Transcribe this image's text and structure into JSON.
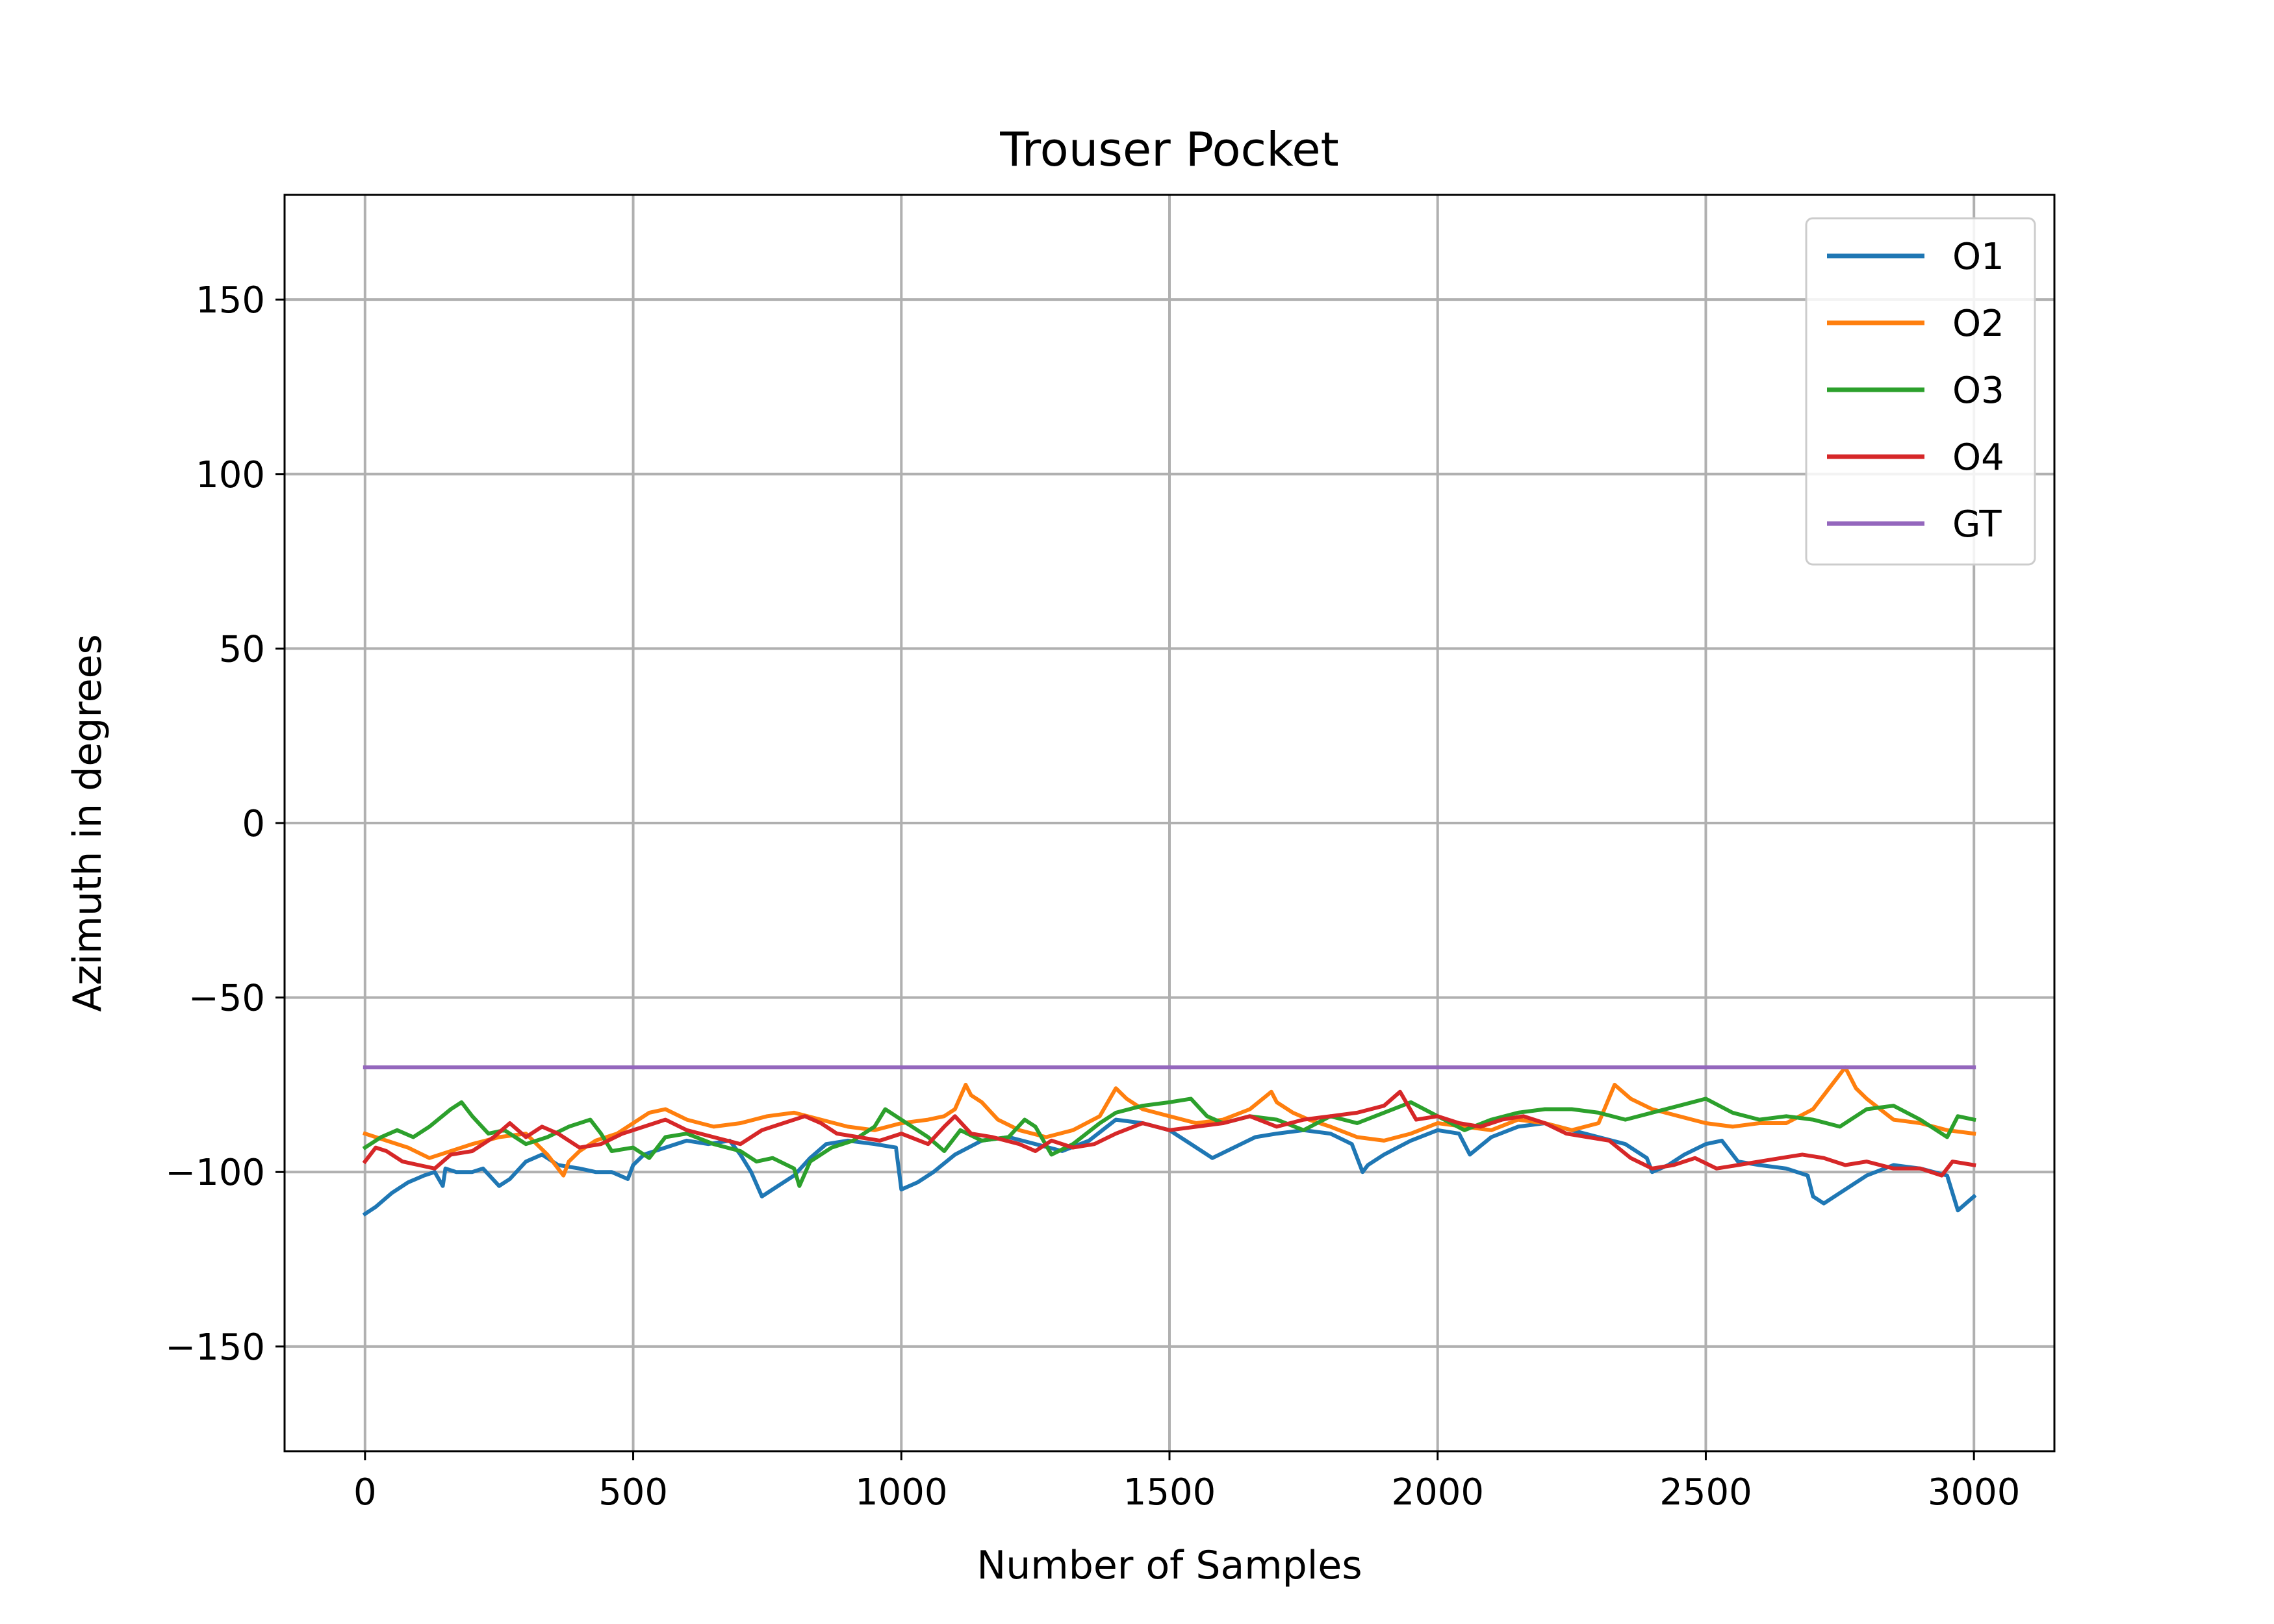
{
  "chart_data": {
    "type": "line",
    "title": "Trouser Pocket",
    "xlabel": "Number of Samples",
    "ylabel": "Azimuth in degrees",
    "xlim": [
      -150,
      3150
    ],
    "ylim": [
      -180,
      180
    ],
    "xticks": [
      0,
      500,
      1000,
      1500,
      2000,
      2500,
      3000
    ],
    "yticks": [
      -150,
      -100,
      -50,
      0,
      50,
      100,
      150
    ],
    "xtick_labels": [
      "0",
      "500",
      "1000",
      "1500",
      "2000",
      "2500",
      "3000"
    ],
    "ytick_labels": [
      "−150",
      "−100",
      "−50",
      "0",
      "50",
      "100",
      "150"
    ],
    "grid": true,
    "legend_position": "upper right",
    "series": [
      {
        "name": "O1",
        "color": "#1f77b4",
        "x": [
          0,
          20,
          50,
          80,
          110,
          130,
          145,
          150,
          170,
          200,
          220,
          250,
          270,
          300,
          330,
          360,
          400,
          430,
          460,
          490,
          500,
          520,
          560,
          600,
          640,
          680,
          700,
          720,
          740,
          770,
          800,
          830,
          860,
          900,
          950,
          990,
          1000,
          1030,
          1060,
          1100,
          1150,
          1200,
          1250,
          1300,
          1350,
          1400,
          1450,
          1500,
          1540,
          1580,
          1620,
          1660,
          1700,
          1750,
          1800,
          1840,
          1860,
          1870,
          1900,
          1950,
          2000,
          2040,
          2060,
          2100,
          2150,
          2200,
          2250,
          2300,
          2350,
          2390,
          2400,
          2430,
          2460,
          2500,
          2530,
          2560,
          2600,
          2650,
          2690,
          2700,
          2720,
          2750,
          2800,
          2850,
          2900,
          2950,
          2970,
          3000
        ],
        "values": [
          -112,
          -110,
          -106,
          -103,
          -101,
          -100,
          -104,
          -99,
          -100,
          -100,
          -99,
          -104,
          -102,
          -97,
          -95,
          -98,
          -99,
          -100,
          -100,
          -102,
          -98,
          -95,
          -93,
          -91,
          -92,
          -91,
          -95,
          -100,
          -107,
          -104,
          -101,
          -96,
          -92,
          -91,
          -92,
          -93,
          -105,
          -103,
          -100,
          -95,
          -91,
          -90,
          -92,
          -94,
          -91,
          -85,
          -86,
          -88,
          -92,
          -96,
          -93,
          -90,
          -89,
          -88,
          -89,
          -92,
          -100,
          -98,
          -95,
          -91,
          -88,
          -89,
          -95,
          -90,
          -87,
          -86,
          -88,
          -90,
          -92,
          -96,
          -100,
          -98,
          -95,
          -92,
          -91,
          -97,
          -98,
          -99,
          -101,
          -107,
          -109,
          -106,
          -101,
          -98,
          -99,
          -101,
          -111,
          -107
        ]
      },
      {
        "name": "O2",
        "color": "#ff7f0e",
        "x": [
          0,
          40,
          80,
          120,
          160,
          200,
          250,
          300,
          340,
          370,
          380,
          400,
          430,
          470,
          500,
          530,
          560,
          600,
          650,
          700,
          750,
          800,
          850,
          900,
          950,
          1000,
          1050,
          1080,
          1100,
          1120,
          1130,
          1150,
          1180,
          1220,
          1270,
          1320,
          1370,
          1400,
          1420,
          1450,
          1500,
          1550,
          1600,
          1650,
          1690,
          1700,
          1730,
          1760,
          1800,
          1850,
          1900,
          1950,
          2000,
          2050,
          2100,
          2150,
          2200,
          2250,
          2300,
          2330,
          2360,
          2400,
          2450,
          2500,
          2550,
          2600,
          2650,
          2700,
          2740,
          2760,
          2780,
          2800,
          2850,
          2900,
          2950,
          3000
        ],
        "values": [
          -89,
          -91,
          -93,
          -96,
          -94,
          -92,
          -90,
          -89,
          -95,
          -101,
          -97,
          -94,
          -91,
          -89,
          -86,
          -83,
          -82,
          -85,
          -87,
          -86,
          -84,
          -83,
          -85,
          -87,
          -88,
          -86,
          -85,
          -84,
          -82,
          -75,
          -78,
          -80,
          -85,
          -88,
          -90,
          -88,
          -84,
          -76,
          -79,
          -82,
          -84,
          -86,
          -85,
          -82,
          -77,
          -80,
          -83,
          -85,
          -87,
          -90,
          -91,
          -89,
          -86,
          -87,
          -88,
          -85,
          -86,
          -88,
          -86,
          -75,
          -79,
          -82,
          -84,
          -86,
          -87,
          -86,
          -86,
          -82,
          -74,
          -70,
          -76,
          -79,
          -85,
          -86,
          -88,
          -89
        ]
      },
      {
        "name": "O3",
        "color": "#2ca02c",
        "x": [
          0,
          30,
          60,
          90,
          120,
          160,
          180,
          200,
          230,
          260,
          300,
          340,
          380,
          420,
          440,
          460,
          500,
          530,
          560,
          600,
          650,
          700,
          730,
          760,
          800,
          810,
          830,
          870,
          910,
          950,
          970,
          990,
          1010,
          1050,
          1080,
          1110,
          1150,
          1200,
          1230,
          1250,
          1280,
          1320,
          1370,
          1400,
          1450,
          1500,
          1540,
          1570,
          1600,
          1650,
          1700,
          1750,
          1800,
          1850,
          1900,
          1950,
          2000,
          2050,
          2100,
          2150,
          2200,
          2250,
          2300,
          2350,
          2400,
          2450,
          2500,
          2550,
          2600,
          2650,
          2700,
          2750,
          2800,
          2850,
          2900,
          2950,
          2970,
          3000
        ],
        "values": [
          -93,
          -90,
          -88,
          -90,
          -87,
          -82,
          -80,
          -84,
          -89,
          -88,
          -92,
          -90,
          -87,
          -85,
          -89,
          -94,
          -93,
          -96,
          -90,
          -89,
          -92,
          -94,
          -97,
          -96,
          -99,
          -104,
          -97,
          -93,
          -91,
          -87,
          -82,
          -84,
          -86,
          -90,
          -94,
          -88,
          -91,
          -90,
          -85,
          -87,
          -95,
          -92,
          -86,
          -83,
          -81,
          -80,
          -79,
          -84,
          -86,
          -84,
          -85,
          -88,
          -84,
          -86,
          -83,
          -80,
          -84,
          -88,
          -85,
          -83,
          -82,
          -82,
          -83,
          -85,
          -83,
          -81,
          -79,
          -83,
          -85,
          -84,
          -85,
          -87,
          -82,
          -81,
          -85,
          -90,
          -84,
          -85
        ]
      },
      {
        "name": "O4",
        "color": "#d62728",
        "x": [
          0,
          20,
          40,
          70,
          100,
          130,
          160,
          200,
          240,
          270,
          300,
          330,
          360,
          400,
          440,
          480,
          520,
          560,
          600,
          650,
          700,
          740,
          780,
          820,
          850,
          880,
          920,
          960,
          1000,
          1050,
          1080,
          1100,
          1130,
          1170,
          1220,
          1250,
          1280,
          1320,
          1360,
          1400,
          1450,
          1500,
          1550,
          1600,
          1650,
          1700,
          1750,
          1800,
          1850,
          1900,
          1930,
          1960,
          2000,
          2040,
          2080,
          2120,
          2160,
          2200,
          2240,
          2280,
          2320,
          2360,
          2400,
          2440,
          2480,
          2520,
          2560,
          2600,
          2640,
          2680,
          2720,
          2760,
          2800,
          2850,
          2900,
          2940,
          2960,
          3000
        ],
        "values": [
          -97,
          -93,
          -94,
          -97,
          -98,
          -99,
          -95,
          -94,
          -90,
          -86,
          -90,
          -87,
          -89,
          -93,
          -92,
          -89,
          -87,
          -85,
          -88,
          -90,
          -92,
          -88,
          -86,
          -84,
          -86,
          -89,
          -90,
          -91,
          -89,
          -92,
          -87,
          -84,
          -89,
          -90,
          -92,
          -94,
          -91,
          -93,
          -92,
          -89,
          -86,
          -88,
          -87,
          -86,
          -84,
          -87,
          -85,
          -84,
          -83,
          -81,
          -77,
          -85,
          -84,
          -86,
          -87,
          -85,
          -84,
          -86,
          -89,
          -90,
          -91,
          -96,
          -99,
          -98,
          -96,
          -99,
          -98,
          -97,
          -96,
          -95,
          -96,
          -98,
          -97,
          -99,
          -99,
          -101,
          -97,
          -98
        ]
      },
      {
        "name": "GT",
        "color": "#9467bd",
        "x": [
          0,
          3000
        ],
        "values": [
          -70,
          -70
        ]
      }
    ]
  }
}
